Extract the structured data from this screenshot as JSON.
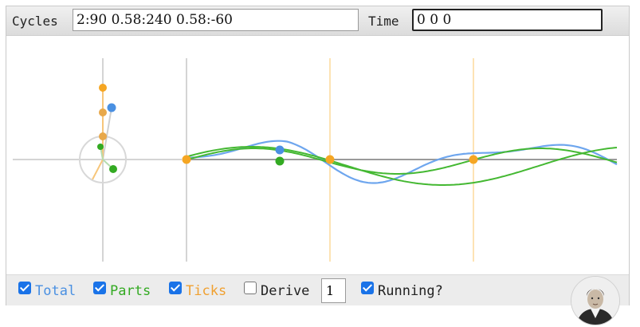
{
  "topbar": {
    "cycles_label": "Cycles",
    "cycles_value": "2:90 0.58:240 0.58:-60",
    "time_label": "Time",
    "time_value": "0 0 0"
  },
  "controls": {
    "total_label": "Total",
    "parts_label": "Parts",
    "ticks_label": "Ticks",
    "derive_label": "Derive",
    "derive_value": "1",
    "running_label": "Running?",
    "total_checked": true,
    "parts_checked": true,
    "ticks_checked": true,
    "derive_checked": false,
    "running_checked": true
  },
  "colors": {
    "total": "#4a90e2",
    "parts": "#33aa22",
    "ticks": "#f0a030",
    "axis": "#cccccc"
  },
  "icons": {
    "avatar": "portrait-avatar-icon"
  }
}
